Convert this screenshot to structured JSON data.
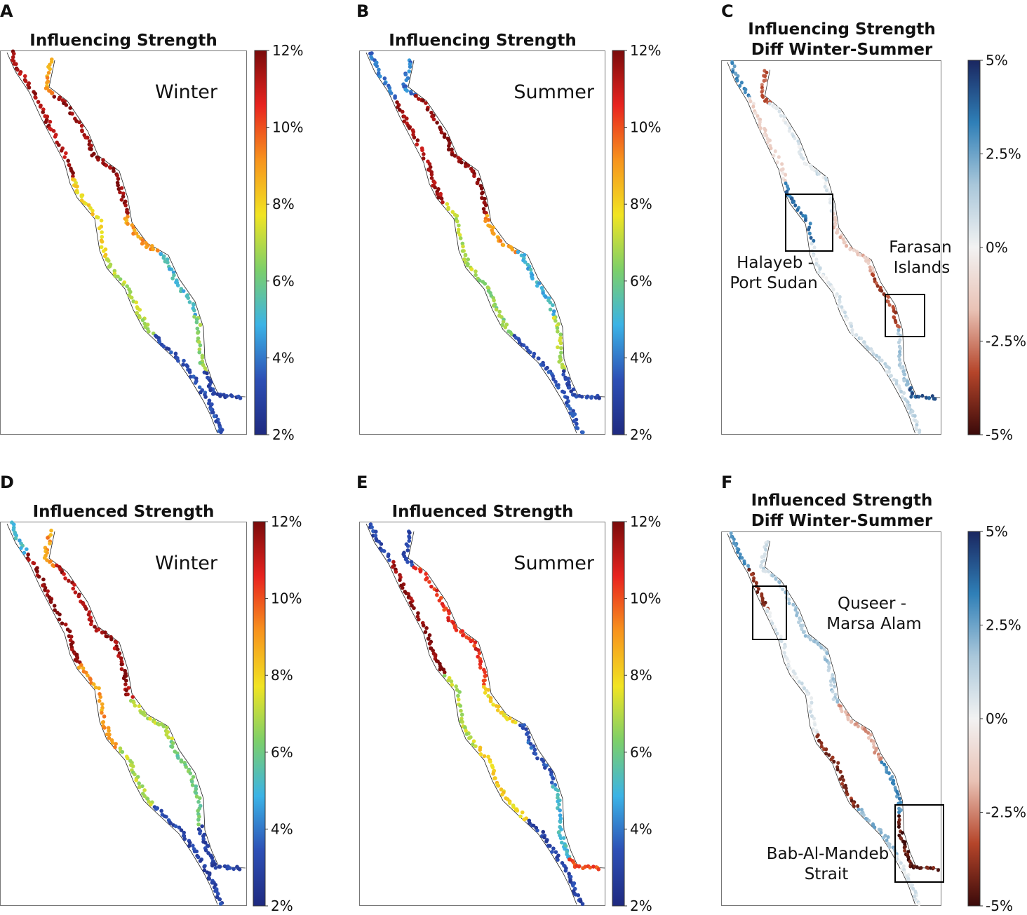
{
  "panels": [
    {
      "letter": "A",
      "title": [
        "Influencing Strength"
      ],
      "season": "Winter",
      "colormap": "jet",
      "profile": "influencing_winter"
    },
    {
      "letter": "B",
      "title": [
        "Influencing Strength"
      ],
      "season": "Summer",
      "colormap": "jet",
      "profile": "influencing_summer"
    },
    {
      "letter": "C",
      "title": [
        "Influencing Strength",
        "Diff Winter-Summer"
      ],
      "colormap": "diverging",
      "profile": "influencing_diff",
      "annotations": [
        [
          "Halayeb -",
          "Port Sudan"
        ],
        [
          "Farasan",
          "Islands"
        ]
      ]
    },
    {
      "letter": "D",
      "title": [
        "Influenced Strength"
      ],
      "season": "Winter",
      "colormap": "jet",
      "profile": "influenced_winter"
    },
    {
      "letter": "E",
      "title": [
        "Influenced Strength"
      ],
      "season": "Summer",
      "colormap": "jet",
      "profile": "influenced_summer"
    },
    {
      "letter": "F",
      "title": [
        "Influenced Strength",
        "Diff Winter-Summer"
      ],
      "colormap": "diverging",
      "profile": "influenced_diff",
      "annotations": [
        [
          "Quseer -",
          "Marsa Alam"
        ],
        [
          "Bab-Al-Mandeb",
          "Strait"
        ]
      ]
    }
  ],
  "colorbars": {
    "strength": {
      "ticks": [
        "12%",
        "10%",
        "8%",
        "6%",
        "4%",
        "2%"
      ],
      "range": [
        2,
        12
      ]
    },
    "diff": {
      "ticks": [
        "5%",
        "2.5%",
        "0%",
        "-2.5%",
        "-5%"
      ],
      "range": [
        -5,
        5
      ]
    }
  },
  "colors": {
    "jet": [
      "#1f2a80",
      "#2d4fb5",
      "#3bb3e6",
      "#7ccf6a",
      "#f1e422",
      "#f7941d",
      "#e8231f",
      "#7a0b0b"
    ],
    "diverging": [
      "#3b0a0a",
      "#b5452a",
      "#e9c2b5",
      "#f2f2f2",
      "#a9c7da",
      "#2f7fb7",
      "#1a2660"
    ]
  }
}
